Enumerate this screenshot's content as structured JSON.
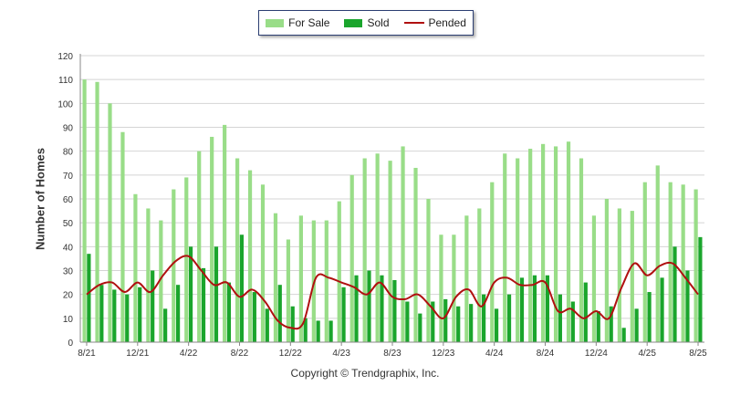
{
  "legend": {
    "for_sale": "For Sale",
    "sold": "Sold",
    "pended": "Pended"
  },
  "copyright": "Copyright © Trendgraphix, Inc.",
  "chart_data": {
    "type": "bar",
    "title": "",
    "xlabel": "",
    "ylabel": "Number of Homes",
    "ylim": [
      0,
      120
    ],
    "yticks": [
      0,
      10,
      20,
      30,
      40,
      50,
      60,
      70,
      80,
      90,
      100,
      110,
      120
    ],
    "grid": true,
    "legend_position": "top-center",
    "x_tick_labels": [
      {
        "index": 0,
        "label": "8/21"
      },
      {
        "index": 4,
        "label": "12/21"
      },
      {
        "index": 8,
        "label": "4/22"
      },
      {
        "index": 12,
        "label": "8/22"
      },
      {
        "index": 16,
        "label": "12/22"
      },
      {
        "index": 20,
        "label": "4/23"
      },
      {
        "index": 24,
        "label": "8/23"
      },
      {
        "index": 28,
        "label": "12/23"
      },
      {
        "index": 32,
        "label": "4/24"
      },
      {
        "index": 36,
        "label": "8/24"
      },
      {
        "index": 40,
        "label": "12/24"
      },
      {
        "index": 44,
        "label": "4/25"
      },
      {
        "index": 48,
        "label": "8/25"
      }
    ],
    "series": [
      {
        "name": "For Sale",
        "type": "bar",
        "color": "#99dd88",
        "values": [
          110,
          109,
          100,
          88,
          62,
          56,
          51,
          64,
          69,
          80,
          86,
          91,
          77,
          72,
          66,
          54,
          43,
          53,
          51,
          51,
          59,
          70,
          77,
          79,
          76,
          82,
          73,
          60,
          45,
          45,
          53,
          56,
          67,
          79,
          77,
          81,
          83,
          82,
          84,
          77,
          53,
          60,
          56,
          55,
          67,
          74,
          67,
          66,
          64
        ]
      },
      {
        "name": "Sold",
        "type": "bar",
        "color": "#1aa52c",
        "values": [
          37,
          24,
          22,
          20,
          23,
          30,
          14,
          24,
          40,
          31,
          40,
          25,
          45,
          21,
          14,
          24,
          15,
          10,
          9,
          9,
          23,
          28,
          30,
          28,
          26,
          17,
          12,
          17,
          18,
          15,
          16,
          20,
          14,
          20,
          27,
          28,
          28,
          20,
          17,
          25,
          13,
          15,
          6,
          14,
          21,
          27,
          40,
          30,
          44
        ]
      },
      {
        "name": "Pended",
        "type": "line",
        "color": "#b01010",
        "values": [
          20,
          24,
          25,
          21,
          25,
          21,
          28,
          34,
          36,
          30,
          24,
          25,
          19,
          22,
          17,
          9,
          6,
          8,
          27,
          27,
          25,
          23,
          20,
          25,
          19,
          18,
          20,
          15,
          10,
          19,
          22,
          15,
          25,
          27,
          24,
          24,
          25,
          13,
          14,
          10,
          13,
          10,
          23,
          33,
          28,
          32,
          33,
          27,
          20
        ]
      }
    ]
  }
}
